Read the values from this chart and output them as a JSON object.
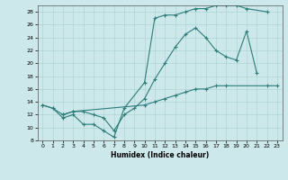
{
  "title": "",
  "xlabel": "Humidex (Indice chaleur)",
  "xlim": [
    -0.5,
    23.5
  ],
  "ylim": [
    8,
    29
  ],
  "yticks": [
    8,
    10,
    12,
    14,
    16,
    18,
    20,
    22,
    24,
    26,
    28
  ],
  "xticks": [
    0,
    1,
    2,
    3,
    4,
    5,
    6,
    7,
    8,
    9,
    10,
    11,
    12,
    13,
    14,
    15,
    16,
    17,
    18,
    19,
    20,
    21,
    22,
    23
  ],
  "background_color": "#cce8ea",
  "grid_color": "#aed4d6",
  "line_color": "#2e7d7a",
  "line1_x": [
    0,
    1,
    2,
    3,
    4,
    5,
    6,
    7,
    8,
    10,
    11,
    12,
    13,
    14,
    15,
    16,
    17,
    18,
    19,
    20,
    22
  ],
  "line1_y": [
    13.5,
    13.0,
    11.5,
    12.0,
    10.5,
    10.5,
    9.5,
    8.5,
    13.0,
    17.0,
    27.0,
    27.5,
    27.5,
    28.0,
    28.5,
    28.5,
    29.0,
    29.0,
    29.0,
    28.5,
    28.0
  ],
  "line2_x": [
    0,
    1,
    2,
    3,
    4,
    5,
    6,
    7,
    8,
    9,
    10,
    11,
    12,
    13,
    14,
    15,
    16,
    17,
    18,
    19,
    20,
    21
  ],
  "line2_y": [
    13.5,
    13.0,
    12.0,
    12.5,
    12.5,
    12.0,
    11.5,
    9.5,
    12.0,
    13.0,
    14.5,
    17.5,
    20.0,
    22.5,
    24.5,
    25.5,
    24.0,
    22.0,
    21.0,
    20.5,
    25.0,
    18.5
  ],
  "line3_x": [
    2,
    3,
    10,
    11,
    12,
    13,
    14,
    15,
    16,
    17,
    18,
    22,
    23
  ],
  "line3_y": [
    12.0,
    12.5,
    13.5,
    14.0,
    14.5,
    15.0,
    15.5,
    16.0,
    16.0,
    16.5,
    16.5,
    16.5,
    16.5
  ]
}
